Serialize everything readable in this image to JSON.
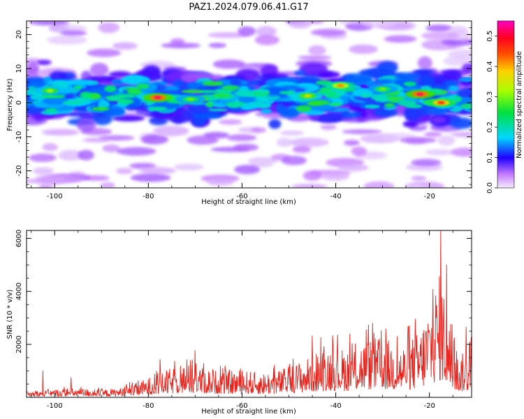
{
  "figure": {
    "title": "PAZ1.2024.079.06.41.G17",
    "colors": {
      "snr_line": "#e8221b",
      "axis": "#000000",
      "background": "#ffffff"
    }
  },
  "chart_data": [
    {
      "type": "heatmap",
      "panel": "top",
      "xlabel": "Height of straight line (km)",
      "ylabel": "Frequency (Hz)",
      "xlim": [
        -106,
        -11
      ],
      "ylim": [
        -25,
        24
      ],
      "xticks": [
        -100,
        -80,
        -60,
        -40,
        -20
      ],
      "yticks": [
        -20,
        -10,
        0,
        10,
        20
      ],
      "colorbar": {
        "label": "Normalized spectral amplitude",
        "range": [
          0.0,
          0.55
        ],
        "ticks": [
          0.0,
          0.1,
          0.2,
          0.3,
          0.4,
          0.5
        ],
        "colormap": "rainbow (white/violet → blue → cyan → green → yellow → orange → red → magenta)"
      },
      "band_center_hz": 2,
      "hot_spots": [
        {
          "x": -78,
          "y": 1.5,
          "value": 0.5
        },
        {
          "x": -22,
          "y": 2.5,
          "value": 0.5
        },
        {
          "x": -17.5,
          "y": 0,
          "value": 0.45
        },
        {
          "x": -46,
          "y": 2,
          "value": 0.35
        },
        {
          "x": -39,
          "y": 5,
          "value": 0.4
        },
        {
          "x": -101,
          "y": 3.5,
          "value": 0.32
        },
        {
          "x": -71,
          "y": 1,
          "value": 0.3
        },
        {
          "x": -30,
          "y": 4,
          "value": 0.3
        }
      ]
    },
    {
      "type": "line",
      "panel": "bottom",
      "xlabel": "Height of straight line (km)",
      "ylabel": "SNR (10 * v/v)",
      "xlim": [
        -106,
        -11
      ],
      "ylim": [
        0,
        6300
      ],
      "xticks": [
        -100,
        -80,
        -60,
        -40,
        -20
      ],
      "yticks": [
        2000,
        4000,
        6000
      ],
      "series": [
        {
          "envelope_x": [
            -106,
            -96,
            -90,
            -86,
            -82,
            -78,
            -72,
            -66,
            -60,
            -56,
            -52,
            -46,
            -42,
            -38,
            -34,
            -30,
            -26,
            -22,
            -19,
            -17.5,
            -16,
            -14,
            -12,
            -11
          ],
          "envelope_y": [
            200,
            300,
            250,
            300,
            500,
            800,
            1100,
            900,
            900,
            800,
            900,
            1300,
            1700,
            1600,
            1900,
            2000,
            1700,
            2200,
            3600,
            4200,
            2600,
            1400,
            1500,
            1800
          ],
          "peaks_x": [
            -102.5,
            -96.5,
            -77.5,
            -71,
            -70,
            -45,
            -33.5,
            -23,
            -19.2,
            -17.6,
            -16.3,
            -12.2
          ],
          "peaks_y": [
            1000,
            750,
            1430,
            1400,
            1780,
            2320,
            2550,
            2950,
            4080,
            6300,
            5000,
            2650
          ]
        }
      ]
    }
  ]
}
